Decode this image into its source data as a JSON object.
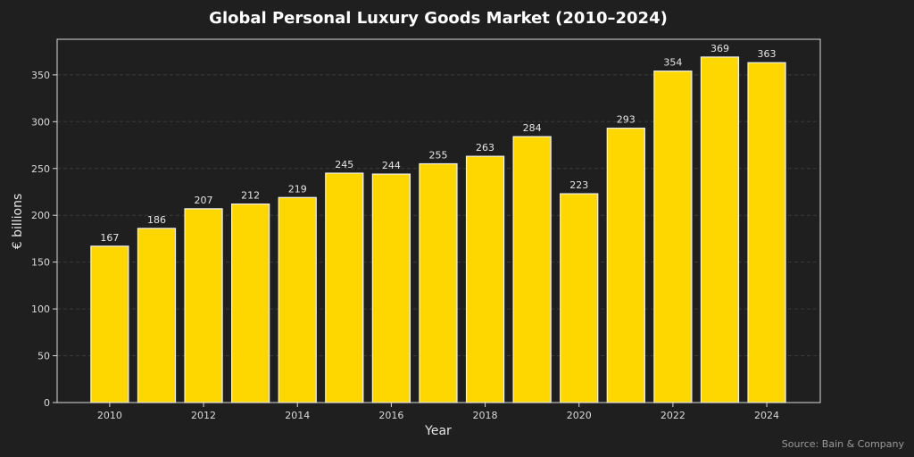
{
  "chart_data": {
    "type": "bar",
    "title": "Global Personal Luxury Goods Market (2010–2024)",
    "xlabel": "Year",
    "ylabel": "€ billions",
    "categories": [
      "2010",
      "2011",
      "2012",
      "2013",
      "2014",
      "2015",
      "2016",
      "2017",
      "2018",
      "2019",
      "2020",
      "2021",
      "2022",
      "2023",
      "2024"
    ],
    "x": [
      2010,
      2011,
      2012,
      2013,
      2014,
      2015,
      2016,
      2017,
      2018,
      2019,
      2020,
      2021,
      2022,
      2023,
      2024
    ],
    "values": [
      167,
      186,
      207,
      212,
      219,
      245,
      244,
      255,
      263,
      284,
      223,
      293,
      354,
      369,
      363
    ],
    "data_labels": [
      "167",
      "186",
      "207",
      "212",
      "219",
      "245",
      "244",
      "255",
      "263",
      "284",
      "223",
      "293",
      "354",
      "369",
      "363"
    ],
    "xticks": [
      2010,
      2012,
      2014,
      2016,
      2018,
      2020,
      2022,
      2024
    ],
    "xtick_labels": [
      "2010",
      "2012",
      "2014",
      "2016",
      "2018",
      "2020",
      "2022",
      "2024"
    ],
    "yticks": [
      0,
      50,
      100,
      150,
      200,
      250,
      300,
      350
    ],
    "ytick_labels": [
      "0",
      "50",
      "100",
      "150",
      "200",
      "250",
      "300",
      "350"
    ],
    "xlim": [
      2008.88,
      2025.14
    ],
    "ylim": [
      0,
      388
    ],
    "grid": "horizontal dashed",
    "legend": "none",
    "annotation": "Source: Bain & Company",
    "colors": {
      "background": "#1f1f1f",
      "bar_fill": "#ffd700",
      "bar_edge": "#f2f2f2",
      "axis": "#d9d9d9",
      "grid": "#3a3a3a"
    }
  }
}
